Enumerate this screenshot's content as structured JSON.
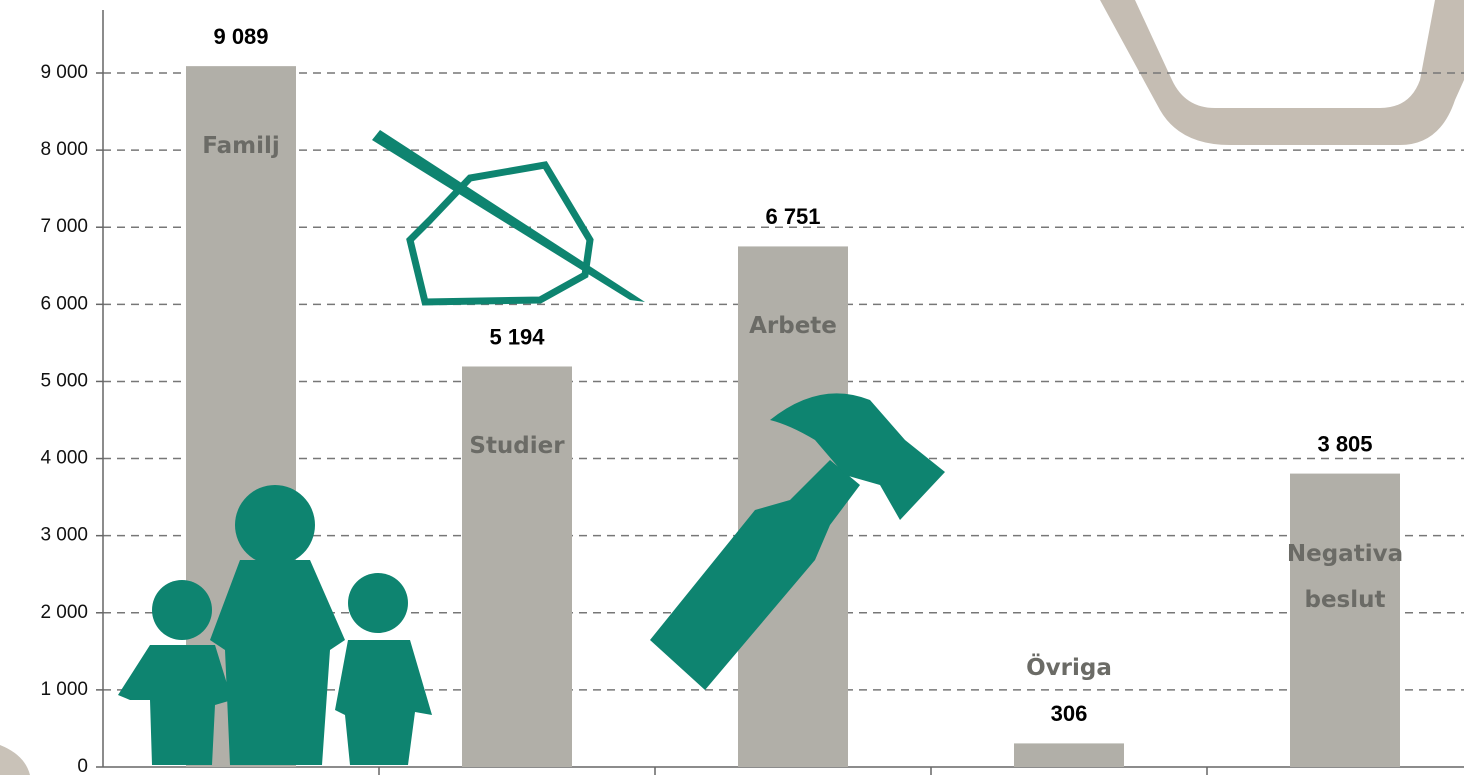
{
  "chart_data": {
    "type": "bar",
    "categories": [
      "Familj",
      "Studier",
      "Arbete",
      "Övriga",
      "Negativa beslut"
    ],
    "values": [
      9089,
      5194,
      6751,
      306,
      3805
    ],
    "value_labels": [
      "9 089",
      "5 194",
      "6 751",
      "306",
      "3 805"
    ],
    "color": "#b1afa8",
    "ylim": [
      0,
      9000
    ],
    "yticks": [
      0,
      {
        "value": 1000,
        "label": "1 000"
      },
      {
        "value": 2000,
        "label": "2 000"
      },
      {
        "value": 3000,
        "label": "3 000"
      },
      {
        "value": 4000,
        "label": "4 000"
      },
      {
        "value": 5000,
        "label": "5 000"
      },
      {
        "value": 6000,
        "label": "6 000"
      },
      {
        "value": 7000,
        "label": "7 000"
      },
      {
        "value": 8000,
        "label": "8 000"
      },
      {
        "value": 9000,
        "label": "9 000"
      }
    ],
    "grid": true
  }
}
